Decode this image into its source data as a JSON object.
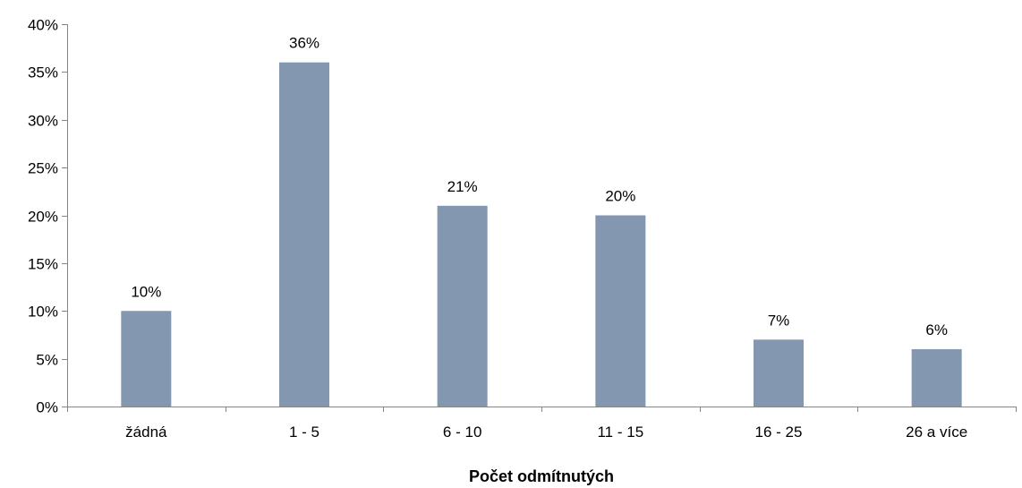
{
  "chart_data": {
    "type": "bar",
    "title": "",
    "xlabel": "Počet odmítnutých",
    "ylabel": "",
    "categories": [
      "žádná",
      "1 - 5",
      "6 - 10",
      "11 - 15",
      "16 - 25",
      "26 a více"
    ],
    "values": [
      10,
      36,
      21,
      20,
      7,
      6
    ],
    "data_labels": [
      "10%",
      "36%",
      "21%",
      "20%",
      "7%",
      "6%"
    ],
    "ylim": [
      0,
      40
    ],
    "y_ticks": [
      0,
      5,
      10,
      15,
      20,
      25,
      30,
      35,
      40
    ],
    "y_tick_labels": [
      "0%",
      "5%",
      "10%",
      "15%",
      "20%",
      "25%",
      "30%",
      "35%",
      "40%"
    ],
    "grid": false,
    "legend": "none",
    "bar_color": "#8497B0"
  }
}
